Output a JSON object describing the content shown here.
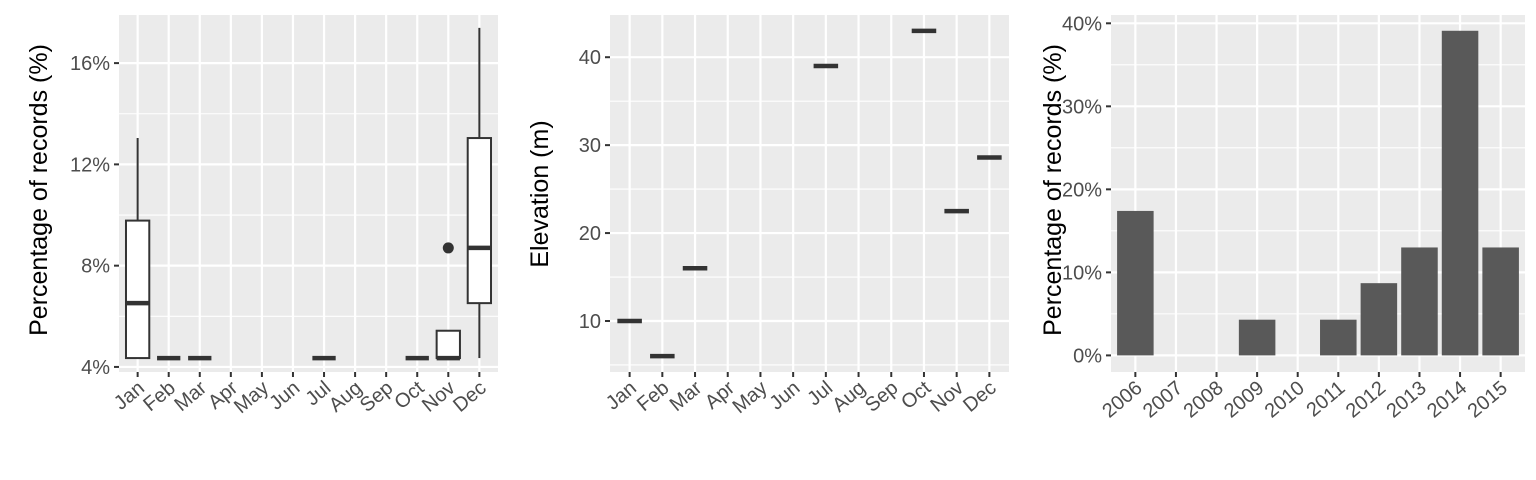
{
  "colors": {
    "panel_bg": "#ebebeb",
    "grid_major": "#ffffff",
    "box_stroke": "#333333",
    "box_fill": "#ffffff",
    "bar_fill": "#595959",
    "tick_text": "#4d4d4d",
    "axis_title": "#000000"
  },
  "chart_data": [
    {
      "type": "boxplot",
      "title": "",
      "xlabel": "",
      "ylabel": "Percentage of records (%)",
      "categories": [
        "Jan",
        "Feb",
        "Mar",
        "Apr",
        "May",
        "Jun",
        "Jul",
        "Aug",
        "Sep",
        "Oct",
        "Nov",
        "Dec"
      ],
      "ylim": [
        3.8,
        17.9
      ],
      "yticks": [
        4,
        8,
        12,
        16
      ],
      "ytick_labels": [
        "4%",
        "8%",
        "12%",
        "16%"
      ],
      "grid": true,
      "boxes": [
        {
          "category": "Jan",
          "min": 4.35,
          "q1": 4.35,
          "median": 6.52,
          "q3": 9.78,
          "max": 13.04
        },
        {
          "category": "Feb",
          "min": 4.35,
          "q1": 4.35,
          "median": 4.35,
          "q3": 4.35,
          "max": 4.35
        },
        {
          "category": "Mar",
          "min": 4.35,
          "q1": 4.35,
          "median": 4.35,
          "q3": 4.35,
          "max": 4.35
        },
        {
          "category": "Jul",
          "min": 4.35,
          "q1": 4.35,
          "median": 4.35,
          "q3": 4.35,
          "max": 4.35
        },
        {
          "category": "Oct",
          "min": 4.35,
          "q1": 4.35,
          "median": 4.35,
          "q3": 4.35,
          "max": 4.35
        },
        {
          "category": "Nov",
          "min": 4.35,
          "q1": 4.35,
          "median": 4.35,
          "q3": 5.43,
          "max": 5.43,
          "outliers": [
            8.7
          ]
        },
        {
          "category": "Dec",
          "min": 4.35,
          "q1": 6.52,
          "median": 8.7,
          "q3": 13.04,
          "max": 17.39
        }
      ]
    },
    {
      "type": "boxplot",
      "title": "",
      "xlabel": "",
      "ylabel": "Elevation (m)",
      "categories": [
        "Jan",
        "Feb",
        "Mar",
        "Apr",
        "May",
        "Jun",
        "Jul",
        "Aug",
        "Sep",
        "Oct",
        "Nov",
        "Dec"
      ],
      "ylim": [
        4.2,
        44.8
      ],
      "yticks": [
        10,
        20,
        30,
        40
      ],
      "ytick_labels": [
        "10",
        "20",
        "30",
        "40"
      ],
      "grid": true,
      "boxes": [
        {
          "category": "Jan",
          "min": 10,
          "q1": 10,
          "median": 10,
          "q3": 10,
          "max": 10
        },
        {
          "category": "Feb",
          "min": 6,
          "q1": 6,
          "median": 6,
          "q3": 6,
          "max": 6
        },
        {
          "category": "Mar",
          "min": 16,
          "q1": 16,
          "median": 16,
          "q3": 16,
          "max": 16
        },
        {
          "category": "Jul",
          "min": 39,
          "q1": 39,
          "median": 39,
          "q3": 39,
          "max": 39
        },
        {
          "category": "Oct",
          "min": 43,
          "q1": 43,
          "median": 43,
          "q3": 43,
          "max": 43
        },
        {
          "category": "Nov",
          "min": 22.5,
          "q1": 22.5,
          "median": 22.5,
          "q3": 22.5,
          "max": 22.5
        },
        {
          "category": "Dec",
          "min": 28.6,
          "q1": 28.6,
          "median": 28.6,
          "q3": 28.6,
          "max": 28.6
        }
      ]
    },
    {
      "type": "bar",
      "title": "",
      "xlabel": "",
      "ylabel": "Percentage of records (%)",
      "categories": [
        "2006",
        "2007",
        "2008",
        "2009",
        "2010",
        "2011",
        "2012",
        "2013",
        "2014",
        "2015"
      ],
      "values": [
        17.4,
        0,
        0,
        4.3,
        0,
        4.3,
        8.7,
        13.0,
        39.1,
        13.0
      ],
      "ylim": [
        -2,
        41
      ],
      "yticks": [
        0,
        10,
        20,
        30,
        40
      ],
      "ytick_labels": [
        "0%",
        "10%",
        "20%",
        "30%",
        "40%"
      ],
      "grid": true
    }
  ]
}
